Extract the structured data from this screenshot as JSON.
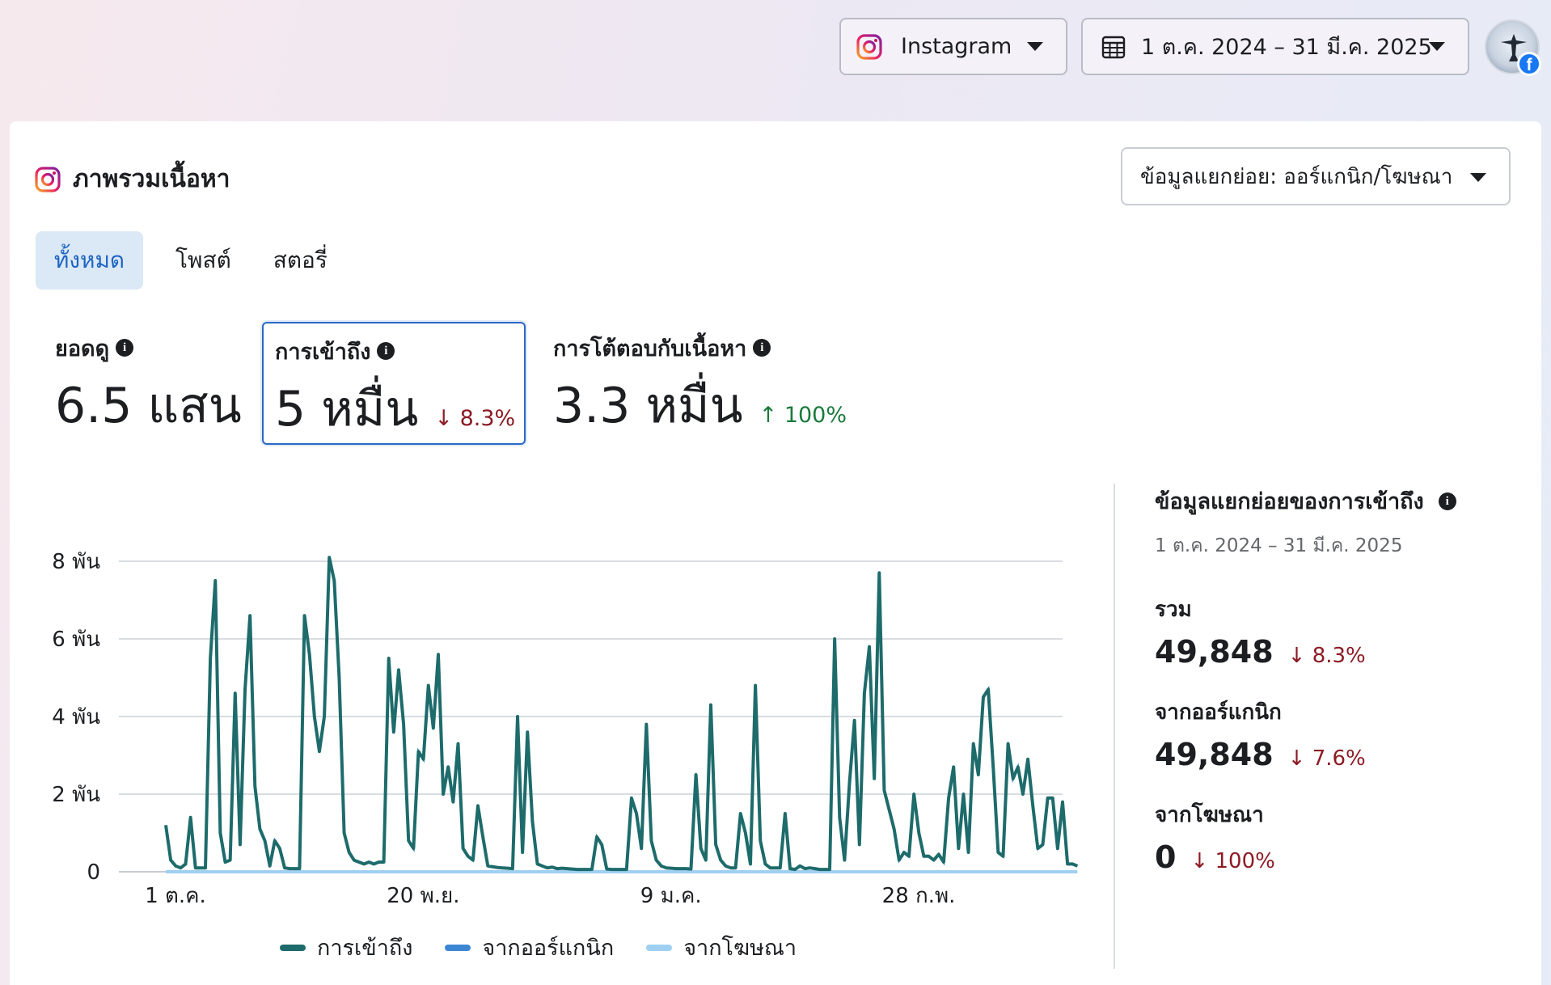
{
  "topbar": {
    "platform_label": "Instagram",
    "date_range": "1 ต.ค. 2024 – 31 มี.ค. 2025",
    "avatar_badge": "f"
  },
  "card": {
    "title": "ภาพรวมเนื้อหา",
    "breakdown_select": "ข้อมูลแยกย่อย: ออร์แกนิก/โฆษณา"
  },
  "tabs": [
    "ทั้งหมด",
    "โพสต์",
    "สตอรี่"
  ],
  "metrics": {
    "views": {
      "label": "ยอดดู",
      "value": "6.5 แสน"
    },
    "reach": {
      "label": "การเข้าถึง",
      "value": "5 หมื่น",
      "delta": "↓ 8.3%"
    },
    "interactions": {
      "label": "การโต้ตอบกับเนื้อหา",
      "value": "3.3 หมื่น",
      "delta": "↑ 100%"
    }
  },
  "info_glyph": "i",
  "side": {
    "title": "ข้อมูลแยกย่อยของการเข้าถึง",
    "date_range": "1 ต.ค. 2024 – 31 มี.ค. 2025",
    "total": {
      "label": "รวม",
      "value": "49,848",
      "delta": "↓ 8.3%"
    },
    "organic": {
      "label": "จากออร์แกนิก",
      "value": "49,848",
      "delta": "↓ 7.6%"
    },
    "ads": {
      "label": "จากโฆษณา",
      "value": "0",
      "delta": "↓ 100%"
    }
  },
  "colors": {
    "reach": "#1e6b6b",
    "organic": "#3c86d4",
    "ads": "#9fd0f2",
    "accent": "#2b69c6",
    "down": "#8c1b24",
    "up": "#1b7a3d"
  },
  "chart_data": {
    "type": "line",
    "y_ticks": [
      "0",
      "2 พัน",
      "4 พัน",
      "6 พัน",
      "8 พัน"
    ],
    "ylim": [
      0,
      8000
    ],
    "x_ticks": [
      "1 ต.ค.",
      "20 พ.ย.",
      "9 ม.ค.",
      "28 ก.พ."
    ],
    "x_tick_days": [
      0,
      50,
      100,
      150
    ],
    "x_range_days": [
      0,
      181
    ],
    "grid": true,
    "legend_position": "bottom",
    "series": [
      {
        "name": "การเข้าถึง",
        "values": [
          1200,
          300,
          150,
          100,
          200,
          1400,
          100,
          100,
          100,
          5500,
          7500,
          1000,
          250,
          300,
          4600,
          700,
          4700,
          6600,
          2200,
          1100,
          800,
          150,
          800,
          600,
          100,
          80,
          80,
          80,
          6600,
          5600,
          4000,
          3100,
          4000,
          8100,
          7500,
          5000,
          1000,
          500,
          300,
          250,
          200,
          250,
          200,
          250,
          250,
          5500,
          3600,
          5200,
          3800,
          800,
          600,
          3100,
          2900,
          4800,
          3700,
          5600,
          2000,
          2700,
          1800,
          3300,
          600,
          400,
          300,
          1700,
          900,
          150,
          130,
          110,
          100,
          90,
          80,
          4000,
          500,
          3600,
          1300,
          200,
          150,
          100,
          120,
          80,
          90,
          80,
          70,
          60,
          60,
          60,
          60,
          900,
          700,
          70,
          60,
          60,
          60,
          60,
          1900,
          1500,
          600,
          3800,
          800,
          300,
          150,
          100,
          90,
          80,
          80,
          80,
          70,
          2500,
          600,
          300,
          4300,
          700,
          300,
          150,
          100,
          100,
          1500,
          1000,
          200,
          4800,
          800,
          200,
          100,
          100,
          100,
          1500,
          80,
          60,
          150,
          80,
          100,
          80,
          60,
          60,
          60,
          6000,
          1400,
          300,
          2300,
          3900,
          700,
          4600,
          5800,
          2400,
          7700,
          2100,
          1600,
          1100,
          300,
          500,
          400,
          2000,
          1000,
          400,
          400,
          300,
          450,
          250,
          1900,
          2700,
          600,
          2000,
          500,
          3300,
          2500,
          4500,
          4700,
          2700,
          500,
          400,
          3300,
          2400,
          2700,
          2000,
          2900,
          1700,
          600,
          700,
          1900,
          1900,
          600,
          1800,
          200,
          200,
          150
        ],
        "color": "#1e6b6b"
      },
      {
        "name": "จากออร์แกนิก",
        "values": "same-as-reach",
        "color": "#3c86d4"
      },
      {
        "name": "จากโฆษณา",
        "values": "all-zero",
        "color": "#9fd0f2"
      }
    ],
    "legend": [
      "การเข้าถึง",
      "จากออร์แกนิก",
      "จากโฆษณา"
    ]
  }
}
